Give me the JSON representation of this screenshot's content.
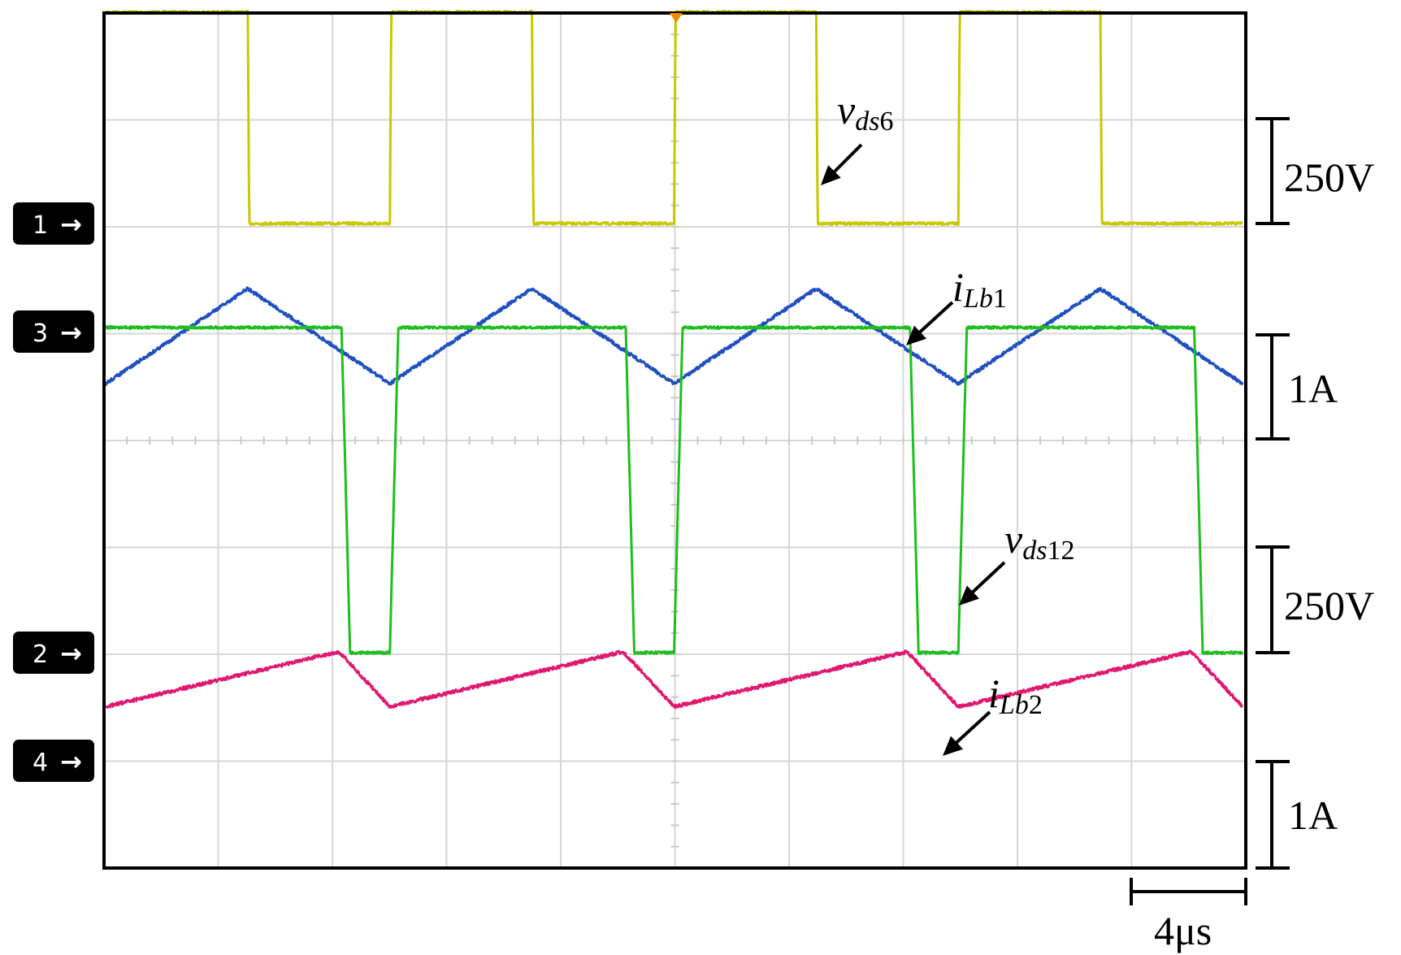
{
  "chart_data": {
    "type": "line",
    "x_unit": "µs",
    "x_range": [
      0,
      40
    ],
    "channel_markers": [
      {
        "label": "1",
        "arrow": "→"
      },
      {
        "label": "3",
        "arrow": "→"
      },
      {
        "label": "2",
        "arrow": "→"
      },
      {
        "label": "4",
        "arrow": "→"
      }
    ],
    "scale_labels": {
      "ch1": "250V",
      "ch3": "1A",
      "ch2": "250V",
      "ch4": "1A",
      "time": "4μs"
    },
    "trigger_marker": true,
    "series": [
      {
        "channel": 1,
        "color": "#c8c800",
        "label": {
          "base": "v",
          "sub": "ds",
          "num": "6"
        },
        "unit": "V",
        "volts_per_div": 250,
        "points": [
          [
            0,
            500
          ],
          [
            5.0,
            500
          ],
          [
            5.05,
            0
          ],
          [
            10.0,
            0
          ],
          [
            10.05,
            500
          ],
          [
            15.0,
            500
          ],
          [
            15.05,
            0
          ],
          [
            20.0,
            0
          ],
          [
            20.05,
            500
          ],
          [
            25.0,
            500
          ],
          [
            25.05,
            0
          ],
          [
            30.0,
            0
          ],
          [
            30.05,
            500
          ],
          [
            35.0,
            500
          ],
          [
            35.05,
            0
          ],
          [
            40.0,
            0
          ]
        ]
      },
      {
        "channel": 3,
        "color": "#1f4fc0",
        "label": {
          "base": "i",
          "sub": "Lb",
          "num": "1"
        },
        "unit": "A",
        "amps_per_div": 1,
        "points": [
          [
            0,
            0
          ],
          [
            5.0,
            0.95
          ],
          [
            10.0,
            0
          ],
          [
            15.0,
            0.95
          ],
          [
            20.0,
            0
          ],
          [
            25.0,
            0.95
          ],
          [
            30.0,
            0
          ],
          [
            35.0,
            0.95
          ],
          [
            40.0,
            0
          ]
        ]
      },
      {
        "channel": 2,
        "color": "#1fbe1f",
        "label": {
          "base": "v",
          "sub": "ds",
          "num": "12"
        },
        "unit": "V",
        "volts_per_div": 250,
        "points": [
          [
            0,
            500
          ],
          [
            8.3,
            500
          ],
          [
            8.6,
            0
          ],
          [
            10.0,
            0
          ],
          [
            10.3,
            500
          ],
          [
            18.3,
            500
          ],
          [
            18.6,
            0
          ],
          [
            20.0,
            0
          ],
          [
            20.3,
            500
          ],
          [
            28.3,
            500
          ],
          [
            28.6,
            0
          ],
          [
            30.0,
            0
          ],
          [
            30.3,
            500
          ],
          [
            38.3,
            500
          ],
          [
            38.6,
            0
          ],
          [
            40.0,
            0
          ]
        ]
      },
      {
        "channel": 4,
        "color": "#e0186f",
        "label": {
          "base": "i",
          "sub": "Lb",
          "num": "2"
        },
        "unit": "A",
        "amps_per_div": 1,
        "points": [
          [
            0,
            0.8
          ],
          [
            8.2,
            1.4
          ],
          [
            10.0,
            0.8
          ],
          [
            18.2,
            1.4
          ],
          [
            20.0,
            0.8
          ],
          [
            28.2,
            1.4
          ],
          [
            30.0,
            0.8
          ],
          [
            38.2,
            1.4
          ],
          [
            40.0,
            0.8
          ]
        ]
      }
    ]
  }
}
